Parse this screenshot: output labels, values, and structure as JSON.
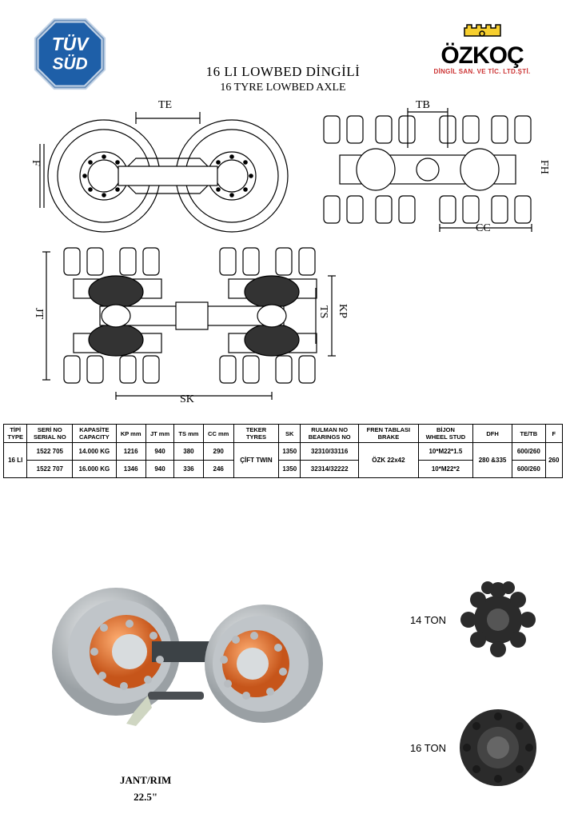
{
  "header": {
    "title_main": "16 LI LOWBED DİNGİLİ",
    "title_sub": "16 TYRE LOWBED AXLE",
    "brand_name": "ÖZKOÇ",
    "brand_sub": "DİNGİL SAN. VE TİC. LTD.ŞTİ.",
    "tuv_text_top": "TÜV",
    "tuv_text_bot": "SÜD",
    "tuv_octagon_fill": "#1e5fa8",
    "tuv_octagon_stroke": "#9fb9d8",
    "brand_gear_fill": "#f7cf2e"
  },
  "diagram_labels": {
    "TE": "TE",
    "TB": "TB",
    "F": "F",
    "FH": "FH",
    "CC": "CC",
    "JT": "JT",
    "KP": "KP",
    "TS": "TS",
    "SK": "SK"
  },
  "table": {
    "headers": [
      "TİPİ\nTYPE",
      "SERİ NO\nSERIAL NO",
      "KAPASİTE\nCAPACITY",
      "KP mm",
      "JT mm",
      "TS mm",
      "CC mm",
      "TEKER\nTYRES",
      "SK",
      "RULMAN NO\nBEARINGS NO",
      "FREN TABLASI\nBRAKE",
      "BİJON\nWHEEL STUD",
      "DFH",
      "TE/TB",
      "F"
    ],
    "type_label": "16 LI",
    "rows": [
      [
        "1522 705",
        "14.000 KG",
        "1216",
        "940",
        "380",
        "290",
        "",
        "1350",
        "32310/33116",
        "",
        "10*M22*1.5",
        "",
        "600/260",
        ""
      ],
      [
        "1522 707",
        "16.000 KG",
        "1346",
        "940",
        "336",
        "246",
        "",
        "1350",
        "32314/32222",
        "",
        "10*M22*2",
        "",
        "600/260",
        ""
      ]
    ],
    "merged": {
      "teker": "ÇİFT  TWIN",
      "fren": "ÖZK 22x42",
      "dfh": "280 &335",
      "f": "260"
    }
  },
  "render": {
    "hub1_label": "14 TON",
    "hub2_label": "16 TON",
    "rim_title": "JANT/RIM",
    "rim_size": "22.5\"",
    "axle_orange": "#e8792a",
    "axle_grey": "#d8dcde",
    "axle_dark": "#4a4e52",
    "hub_color": "#2b2b2b"
  }
}
